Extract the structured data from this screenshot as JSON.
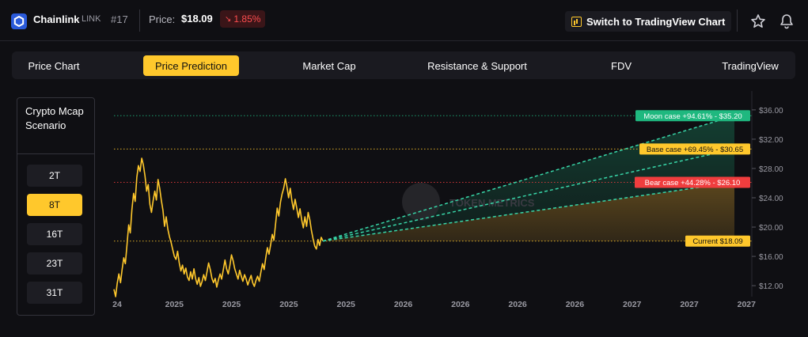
{
  "header": {
    "coin_name": "Chainlink",
    "coin_symbol": "LINK",
    "rank": "#17",
    "price_label": "Price:",
    "price_value": "$18.09",
    "change": "1.85%",
    "change_direction": "down",
    "tv_button": "Switch to TradingView Chart",
    "icons": [
      "chainlink-logo-icon",
      "chart-icon",
      "star-icon",
      "bell-icon"
    ]
  },
  "tabs": [
    {
      "label": "Price Chart",
      "active": false
    },
    {
      "label": "Price Prediction",
      "active": true
    },
    {
      "label": "Market Cap",
      "active": false
    },
    {
      "label": "Resistance & Support",
      "active": false
    },
    {
      "label": "FDV",
      "active": false
    },
    {
      "label": "TradingView",
      "active": false
    }
  ],
  "scenario": {
    "title": "Crypto Mcap Scenario",
    "options": [
      {
        "label": "2T",
        "active": false
      },
      {
        "label": "8T",
        "active": true
      },
      {
        "label": "16T",
        "active": false
      },
      {
        "label": "23T",
        "active": false
      },
      {
        "label": "31T",
        "active": false
      }
    ]
  },
  "colors": {
    "accent": "#ffc82c",
    "moon": "#1fb87f",
    "bear": "#f03d3e",
    "down": "#ff4d4f"
  },
  "chart_data": {
    "type": "line",
    "y_ticks": [
      "$12.00",
      "$16.00",
      "$20.00",
      "$24.00",
      "$28.00",
      "$32.00",
      "$36.00"
    ],
    "x_ticks": [
      "24",
      "2025",
      "2025",
      "2025",
      "2025",
      "2026",
      "2026",
      "2026",
      "2026",
      "2027",
      "2027",
      "2027"
    ],
    "ylim": [
      10.5,
      37.5
    ],
    "watermark": "TOKEN METRICS",
    "series": [
      {
        "values": [
          11.5,
          10.5,
          12.3,
          13.6,
          12.4,
          14.2,
          15.8,
          15.0,
          17.6,
          20.3,
          19.2,
          22.4,
          24.6,
          23.5,
          26.8,
          28.4,
          27.6,
          29.4,
          28.5,
          27.0,
          24.9,
          25.8,
          23.1,
          22.0,
          23.6,
          24.9,
          23.7,
          26.5,
          25.3,
          23.7,
          22.3,
          20.1,
          21.4,
          19.7,
          18.7,
          17.9,
          16.9,
          16.0,
          15.6,
          16.7,
          15.1,
          14.0,
          14.8,
          13.6,
          14.4,
          13.2,
          12.7,
          13.9,
          12.9,
          14.3,
          13.0,
          12.2,
          13.1,
          11.9,
          12.6,
          13.5,
          12.7,
          13.9,
          15.1,
          14.2,
          13.0,
          12.4,
          13.0,
          11.8,
          12.8,
          13.6,
          12.9,
          14.2,
          15.5,
          14.3,
          13.6,
          14.7,
          16.2,
          15.4,
          14.3,
          13.6,
          12.9,
          14.1,
          13.3,
          12.6,
          13.5,
          12.9,
          12.1,
          12.8,
          13.4,
          12.4,
          11.9,
          12.7,
          13.3,
          12.6,
          13.8,
          15.0,
          14.2,
          15.8,
          17.2,
          16.3,
          17.6,
          19.0,
          18.2,
          20.4,
          22.6,
          21.5,
          23.4,
          24.5,
          25.3,
          26.6,
          25.5,
          24.0,
          25.3,
          23.6,
          22.4,
          23.8,
          22.6,
          21.3,
          22.5,
          21.0,
          19.9,
          21.4,
          20.1,
          22.0,
          21.0,
          19.5,
          18.4,
          17.4,
          17.0,
          18.3,
          17.5,
          18.6,
          18.09
        ]
      }
    ],
    "projections": [
      {
        "name": "Moon case",
        "pct": "+94.61%",
        "price": "$35.20",
        "value": 35.2,
        "label": "Moon case +94.61% - $35.20"
      },
      {
        "name": "Base case",
        "pct": "+69.45%",
        "price": "$30.65",
        "value": 30.65,
        "label": "Base case +69.45% - $30.65"
      },
      {
        "name": "Bear case",
        "pct": "+44.28%",
        "price": "$26.10",
        "value": 26.1,
        "label": "Bear case +44.28% - $26.10"
      },
      {
        "name": "Current",
        "price": "$18.09",
        "value": 18.09,
        "label": "Current $18.09"
      }
    ]
  }
}
